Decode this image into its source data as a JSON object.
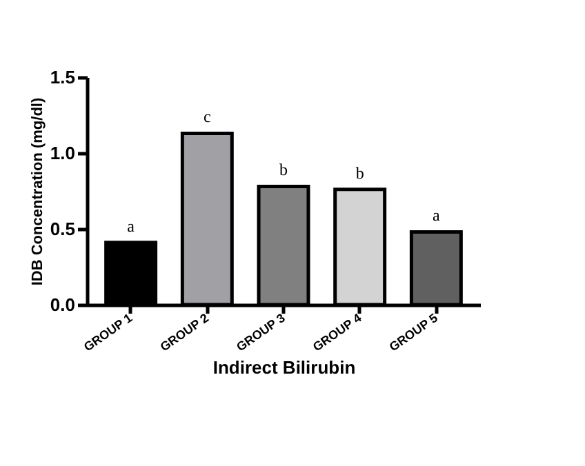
{
  "chart_data": {
    "type": "bar",
    "xlabel": "Indirect Bilirubin",
    "ylabel": "IDB Concentration (mg/dl)",
    "categories": [
      "GROUP 1",
      "GROUP 2",
      "GROUP 3",
      "GROUP 4",
      "GROUP 5"
    ],
    "values": [
      0.41,
      1.13,
      0.78,
      0.76,
      0.48
    ],
    "colors": [
      "#000000",
      "#a0a0a5",
      "#808080",
      "#d3d3d3",
      "#606060"
    ],
    "ylim": [
      0,
      1.5
    ],
    "yticks": [
      {
        "value": 0,
        "label": "0.0"
      },
      0.5,
      {
        "value": 1,
        "label": "1.0"
      },
      1.5
    ],
    "grid": false,
    "annotations": [
      {
        "text": "a",
        "x": "GROUP 1",
        "y": 0.41
      },
      {
        "text": "c",
        "x": "GROUP 2",
        "y": 1.13
      },
      {
        "text": "b",
        "x": "GROUP 3",
        "y": 0.78
      },
      {
        "text": "b",
        "x": "GROUP 4",
        "y": 0.76
      },
      {
        "text": "a",
        "x": "GROUP 5",
        "y": 0.48
      }
    ]
  }
}
